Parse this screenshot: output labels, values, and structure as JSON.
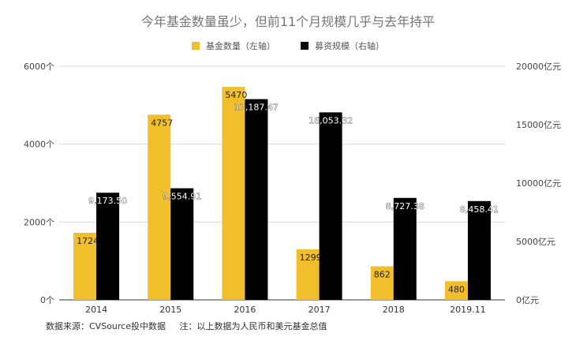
{
  "chart_data": {
    "type": "bar",
    "title": "今年基金数量虽少，但前11个月规模几乎与去年持平",
    "categories": [
      "2014",
      "2015",
      "2016",
      "2017",
      "2018",
      "2019.11"
    ],
    "series": [
      {
        "name": "基金数量（左轴）",
        "axis": "left",
        "color": "#f1bf2c",
        "values": [
          1724,
          4757,
          5470,
          1299,
          862,
          480
        ],
        "labels": [
          "1724",
          "4757",
          "5470",
          "1299",
          "862",
          "480"
        ]
      },
      {
        "name": "募资规模（右轴）",
        "axis": "right",
        "color": "#000000",
        "values": [
          9173.5,
          9554.91,
          17187.47,
          16053.32,
          8727.38,
          8458.41
        ],
        "labels": [
          "9,173.50",
          "9,554.91",
          "17,187.47",
          "16,053.32",
          "8,727.38",
          "8,458.41"
        ]
      }
    ],
    "y_left": {
      "ylim": [
        0,
        6000
      ],
      "ticks": [
        "0个",
        "2000个",
        "4000个",
        "6000个"
      ],
      "tick_values": [
        0,
        2000,
        4000,
        6000
      ]
    },
    "y_right": {
      "ylim": [
        0,
        20000
      ],
      "ticks": [
        "0亿元",
        "5000亿元",
        "10000亿元",
        "15000亿元",
        "20000亿元"
      ],
      "tick_values": [
        0,
        5000,
        10000,
        15000,
        20000
      ]
    },
    "grid": true,
    "legend_position": "top-center"
  },
  "footnote": {
    "source": "数据来源：CVSource投中数据",
    "note": "注：以上数据为人民币和美元基金总值"
  }
}
